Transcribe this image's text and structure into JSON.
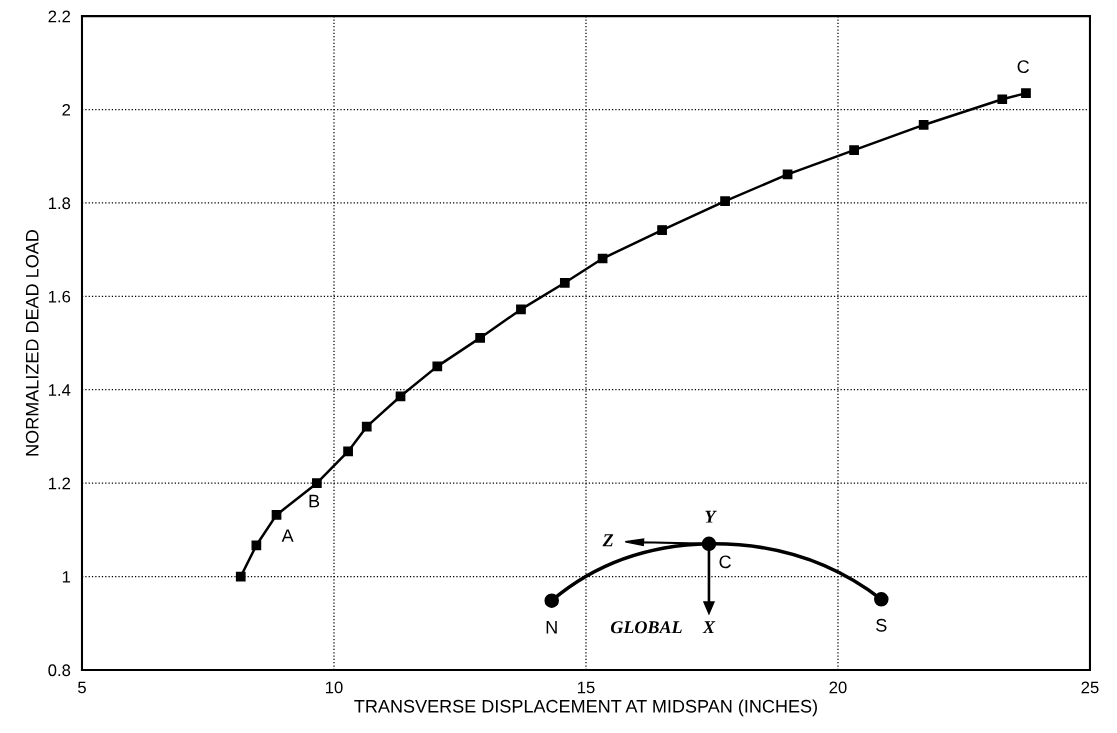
{
  "chart_data": {
    "type": "line",
    "xlabel": "TRANSVERSE DISPLACEMENT AT MIDSPAN (INCHES)",
    "ylabel": "NORMALIZED DEAD LOAD",
    "series": [
      {
        "color": "#000000",
        "x": [
          8.15,
          8.46,
          8.86,
          9.66,
          10.28,
          10.65,
          11.32,
          12.05,
          12.9,
          13.71,
          14.58,
          15.33,
          16.51,
          17.76,
          19.0,
          20.32,
          21.7,
          23.26,
          23.73
        ],
        "values": [
          1.0,
          1.067,
          1.132,
          1.2,
          1.268,
          1.321,
          1.386,
          1.45,
          1.511,
          1.572,
          1.629,
          1.681,
          1.742,
          1.804,
          1.861,
          1.913,
          1.967,
          2.022,
          2.035
        ]
      }
    ],
    "xlim": [
      5,
      25
    ],
    "xticks": [
      5,
      10,
      15,
      20,
      25
    ],
    "ylim": [
      0.8,
      2.2
    ],
    "yticks": [
      0.8,
      1,
      1.2,
      1.4,
      1.6,
      1.8,
      2,
      2.2
    ],
    "grid": true,
    "marker": "square",
    "line_style": "solid",
    "annotations": [
      {
        "text": "A",
        "x": 8.86,
        "y": 1.132
      },
      {
        "text": "B",
        "x": 9.66,
        "y": 1.2
      },
      {
        "text": "C",
        "x": 23.73,
        "y": 2.035
      },
      "Y",
      "Z",
      "C",
      "N",
      "GLOBAL",
      "X",
      "S"
    ]
  }
}
